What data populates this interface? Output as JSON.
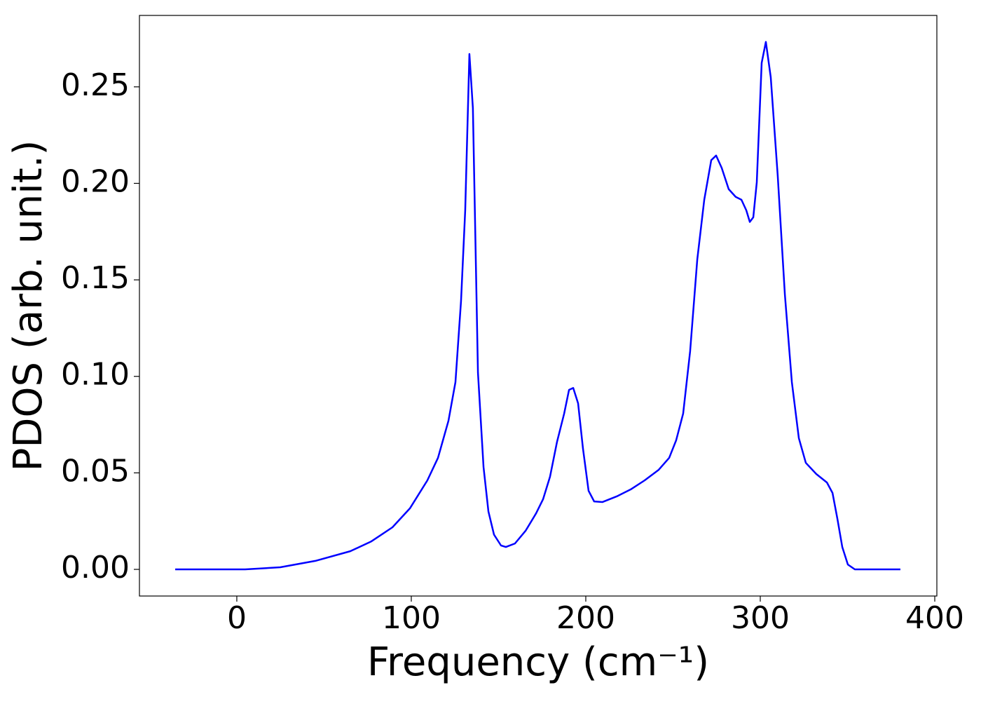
{
  "chart_data": {
    "type": "line",
    "xlabel": "Frequency (cm⁻¹)",
    "ylabel": "PDOS (arb. unit.)",
    "x": [
      -35.3,
      4.8,
      24.9,
      45,
      65,
      77.1,
      89.2,
      99.2,
      109.2,
      115.3,
      121.3,
      125.3,
      128.5,
      130.9,
      133.3,
      135.3,
      138.2,
      141.4,
      144.2,
      147.4,
      151.4,
      154.2,
      159.4,
      165.5,
      171.5,
      175.5,
      179.5,
      183.5,
      187.6,
      190.4,
      192.8,
      195.6,
      198.4,
      201.6,
      204.8,
      209.6,
      217.7,
      225.7,
      233.7,
      241.8,
      247.8,
      251.8,
      255.8,
      259.8,
      263.9,
      267.9,
      271.9,
      274.7,
      277.9,
      281.9,
      285.9,
      289.2,
      292,
      294,
      296,
      298,
      300.8,
      303.2,
      306,
      310,
      314.1,
      318.1,
      322.1,
      326.1,
      332.1,
      338.2,
      341.4,
      344.2,
      347,
      350.2,
      354.2,
      380.3
    ],
    "series": [
      {
        "color": "#0000ff",
        "values": [
          0,
          0,
          0.0011,
          0.0044,
          0.0094,
          0.0145,
          0.0218,
          0.0316,
          0.0461,
          0.0578,
          0.077,
          0.097,
          0.139,
          0.186,
          0.267,
          0.239,
          0.102,
          0.053,
          0.03,
          0.018,
          0.0124,
          0.0116,
          0.0134,
          0.02,
          0.029,
          0.0363,
          0.048,
          0.066,
          0.0807,
          0.093,
          0.094,
          0.086,
          0.0625,
          0.0407,
          0.0352,
          0.0349,
          0.0378,
          0.0414,
          0.0461,
          0.0516,
          0.0578,
          0.0669,
          0.0807,
          0.113,
          0.1606,
          0.1915,
          0.212,
          0.2144,
          0.208,
          0.197,
          0.193,
          0.1915,
          0.186,
          0.18,
          0.1824,
          0.2006,
          0.2624,
          0.2733,
          0.255,
          0.204,
          0.1424,
          0.097,
          0.068,
          0.0552,
          0.0494,
          0.045,
          0.0396,
          0.0262,
          0.0116,
          0.0025,
          0,
          0
        ]
      }
    ],
    "xlim": [
      -55.8,
      401.2
    ],
    "ylim": [
      -0.0138,
      0.287
    ],
    "xticks": [
      0,
      100,
      200,
      300,
      400
    ],
    "yticks": [
      {
        "value": 0,
        "label": "0.00"
      },
      {
        "value": 0.05,
        "label": "0.05"
      },
      {
        "value": 0.1,
        "label": "0.10"
      },
      {
        "value": 0.15,
        "label": "0.15"
      },
      {
        "value": 0.2,
        "label": "0.20"
      },
      {
        "value": 0.25,
        "label": "0.25"
      }
    ]
  }
}
